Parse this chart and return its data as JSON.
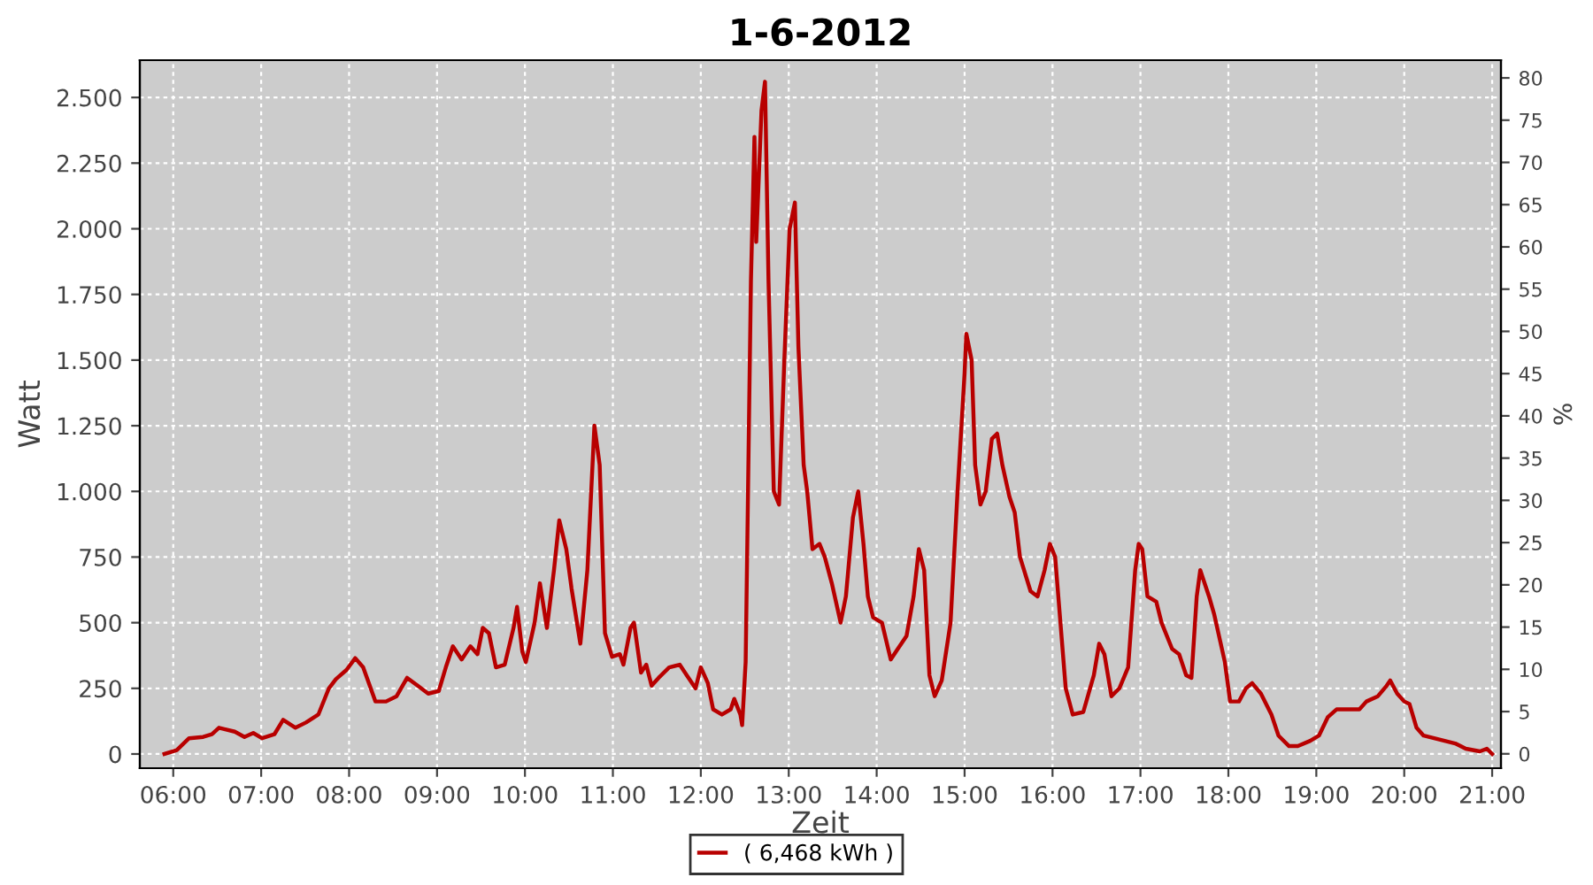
{
  "chart_data": {
    "type": "line",
    "title": "1-6-2012",
    "xlabel": "Zeit",
    "ylabel": "Watt",
    "y2label": "%",
    "x": [
      5.9,
      6.04,
      6.18,
      6.34,
      6.44,
      6.52,
      6.7,
      6.81,
      6.91,
      7.01,
      7.15,
      7.25,
      7.39,
      7.51,
      7.65,
      7.77,
      7.85,
      7.97,
      8.07,
      8.16,
      8.3,
      8.42,
      8.54,
      8.66,
      8.78,
      8.9,
      9.02,
      9.1,
      9.18,
      9.28,
      9.38,
      9.46,
      9.52,
      9.59,
      9.67,
      9.77,
      9.87,
      9.91,
      9.97,
      10.01,
      10.11,
      10.17,
      10.25,
      10.33,
      10.39,
      10.47,
      10.53,
      10.63,
      10.71,
      10.79,
      10.85,
      10.91,
      10.99,
      11.08,
      11.12,
      11.2,
      11.24,
      11.32,
      11.38,
      11.44,
      11.52,
      11.64,
      11.76,
      11.84,
      11.94,
      12.0,
      12.08,
      12.14,
      12.24,
      12.34,
      12.38,
      12.45,
      12.47,
      12.51,
      12.57,
      12.61,
      12.63,
      12.69,
      12.73,
      12.77,
      12.83,
      12.89,
      12.95,
      13.01,
      13.07,
      13.11,
      13.17,
      13.21,
      13.27,
      13.35,
      13.41,
      13.49,
      13.59,
      13.65,
      13.73,
      13.79,
      13.85,
      13.9,
      13.96,
      14.06,
      14.16,
      14.24,
      14.34,
      14.42,
      14.48,
      14.54,
      14.6,
      14.66,
      14.74,
      14.84,
      14.92,
      15.0,
      15.02,
      15.08,
      15.12,
      15.18,
      15.24,
      15.31,
      15.37,
      15.43,
      15.51,
      15.57,
      15.63,
      15.75,
      15.83,
      15.91,
      15.97,
      16.03,
      16.09,
      16.15,
      16.23,
      16.35,
      16.47,
      16.53,
      16.59,
      16.67,
      16.76,
      16.86,
      16.94,
      16.98,
      17.02,
      17.08,
      17.18,
      17.24,
      17.36,
      17.44,
      17.52,
      17.58,
      17.64,
      17.68,
      17.78,
      17.84,
      17.96,
      18.02,
      18.12,
      18.2,
      18.27,
      18.37,
      18.49,
      18.57,
      18.69,
      18.79,
      18.93,
      19.03,
      19.13,
      19.23,
      19.49,
      19.57,
      19.7,
      19.8,
      19.84,
      19.92,
      20.0,
      20.06,
      20.14,
      20.22,
      20.34,
      20.46,
      20.58,
      20.7,
      20.86,
      20.94,
      21.0
    ],
    "series": [
      {
        "name": "( 6,468 kWh )",
        "color": "#b80000",
        "values": [
          0,
          15,
          60,
          65,
          75,
          100,
          85,
          65,
          80,
          60,
          75,
          130,
          100,
          120,
          150,
          250,
          285,
          320,
          365,
          330,
          200,
          200,
          220,
          290,
          260,
          230,
          240,
          330,
          410,
          360,
          410,
          380,
          480,
          460,
          330,
          340,
          480,
          560,
          390,
          350,
          500,
          650,
          480,
          700,
          890,
          780,
          630,
          420,
          700,
          1250,
          1100,
          460,
          370,
          380,
          340,
          480,
          500,
          310,
          340,
          260,
          290,
          330,
          340,
          300,
          250,
          330,
          270,
          170,
          150,
          170,
          210,
          150,
          110,
          350,
          1800,
          2350,
          1950,
          2450,
          2560,
          1800,
          1000,
          950,
          1500,
          2000,
          2100,
          1550,
          1100,
          1000,
          780,
          800,
          750,
          650,
          500,
          600,
          900,
          1000,
          800,
          600,
          520,
          500,
          360,
          400,
          450,
          600,
          780,
          700,
          300,
          220,
          280,
          500,
          1000,
          1450,
          1600,
          1500,
          1100,
          950,
          1000,
          1200,
          1220,
          1100,
          980,
          920,
          750,
          620,
          600,
          700,
          800,
          750,
          500,
          250,
          150,
          160,
          300,
          420,
          380,
          220,
          250,
          330,
          700,
          800,
          780,
          600,
          580,
          500,
          400,
          380,
          300,
          290,
          600,
          700,
          600,
          530,
          350,
          200,
          200,
          250,
          270,
          230,
          150,
          70,
          30,
          30,
          50,
          70,
          140,
          170,
          170,
          200,
          220,
          260,
          280,
          230,
          200,
          190,
          100,
          70,
          60,
          50,
          40,
          20,
          10,
          20,
          0
        ]
      }
    ],
    "xlim": [
      5.62,
      21.1
    ],
    "xticks": [
      {
        "value": 6,
        "label": "06:00"
      },
      {
        "value": 7,
        "label": "07:00"
      },
      {
        "value": 8,
        "label": "08:00"
      },
      {
        "value": 9,
        "label": "09:00"
      },
      {
        "value": 10,
        "label": "10:00"
      },
      {
        "value": 11,
        "label": "11:00"
      },
      {
        "value": 12,
        "label": "12:00"
      },
      {
        "value": 13,
        "label": "13:00"
      },
      {
        "value": 14,
        "label": "14:00"
      },
      {
        "value": 15,
        "label": "15:00"
      },
      {
        "value": 16,
        "label": "16:00"
      },
      {
        "value": 17,
        "label": "17:00"
      },
      {
        "value": 18,
        "label": "18:00"
      },
      {
        "value": 19,
        "label": "19:00"
      },
      {
        "value": 20,
        "label": "20:00"
      },
      {
        "value": 21,
        "label": "21:00"
      }
    ],
    "ylim": [
      -54,
      2642
    ],
    "yticks": [
      0,
      {
        "value": 250,
        "label": "250"
      },
      {
        "value": 500,
        "label": "500"
      },
      {
        "value": 750,
        "label": "750"
      },
      {
        "value": 1000,
        "label": "1.000"
      },
      {
        "value": 1250,
        "label": "1.250"
      },
      {
        "value": 1500,
        "label": "1.500"
      },
      {
        "value": 1750,
        "label": "1.750"
      },
      {
        "value": 2000,
        "label": "2.000"
      },
      {
        "value": 2250,
        "label": "2.250"
      },
      {
        "value": 2500,
        "label": "2.500"
      }
    ],
    "y2lim": [
      -1.7,
      82.1
    ],
    "y2ticks": [
      0,
      5,
      10,
      15,
      20,
      25,
      30,
      35,
      40,
      45,
      50,
      55,
      60,
      65,
      70,
      75,
      80
    ],
    "grid": true,
    "legend": "bottom",
    "marker": "none",
    "line_style": "solid"
  }
}
